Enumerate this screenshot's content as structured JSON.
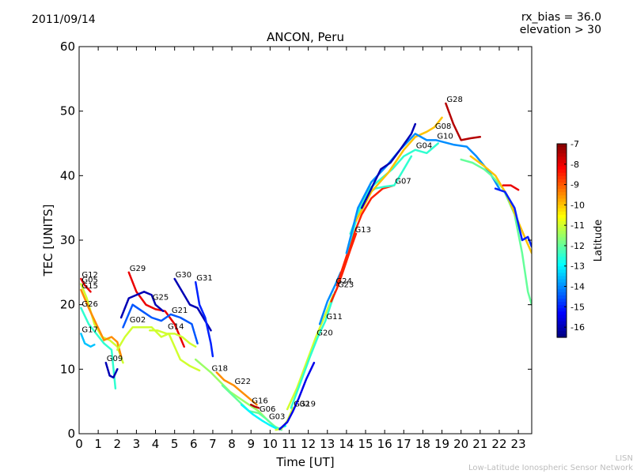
{
  "header": {
    "date": "2011/09/14",
    "rx_bias": "rx_bias = 36.0",
    "elevation": "elevation > 30"
  },
  "footer": {
    "line1": "LISN",
    "line2": "Low-Latitude Ionospheric Sensor Network"
  },
  "chart_data": {
    "type": "line",
    "title": "ANCON, Peru",
    "xlabel": "Time [UT]",
    "ylabel": "TEC [UNITS]",
    "xlim": [
      0,
      23.7
    ],
    "ylim": [
      0,
      60
    ],
    "xticks": [
      "0",
      "1",
      "2",
      "3",
      "4",
      "5",
      "6",
      "7",
      "8",
      "9",
      "10",
      "11",
      "12",
      "13",
      "14",
      "15",
      "16",
      "17",
      "18",
      "19",
      "20",
      "21",
      "22",
      "23"
    ],
    "yticks": [
      "0",
      "10",
      "20",
      "30",
      "40",
      "50",
      "60"
    ],
    "colorbar": {
      "label": "Latitude",
      "min": -16.5,
      "max": -7,
      "ticks": [
        "-7",
        "-8",
        "-9",
        "-10",
        "-11",
        "-12",
        "-13",
        "-14",
        "-15",
        "-16"
      ]
    },
    "series": [
      {
        "name": "G12",
        "lat": -8.0,
        "label_at": [
          0.1,
          24
        ],
        "points": [
          [
            0.1,
            24
          ],
          [
            0.3,
            23
          ],
          [
            0.6,
            22
          ]
        ]
      },
      {
        "name": "G05",
        "lat": -11.0,
        "label_at": [
          0.1,
          23.2
        ],
        "points": [
          [
            0.1,
            23.2
          ],
          [
            0.4,
            21
          ],
          [
            0.8,
            17
          ],
          [
            1.2,
            15
          ],
          [
            1.6,
            14.5
          ],
          [
            2.0,
            13.5
          ],
          [
            2.3,
            11
          ]
        ]
      },
      {
        "name": "G15",
        "lat": -9.5,
        "label_at": [
          0.1,
          22.3
        ],
        "points": [
          [
            0.1,
            22.3
          ],
          [
            0.5,
            19.5
          ],
          [
            0.9,
            17
          ],
          [
            1.3,
            14.5
          ],
          [
            1.7,
            15
          ],
          [
            2.0,
            14.2
          ],
          [
            2.2,
            12
          ]
        ]
      },
      {
        "name": "G26",
        "lat": -12.5,
        "label_at": [
          0.1,
          19.5
        ],
        "points": [
          [
            0.1,
            19.5
          ],
          [
            0.5,
            17
          ],
          [
            0.9,
            15.5
          ],
          [
            1.3,
            14
          ],
          [
            1.7,
            13
          ],
          [
            1.9,
            7
          ]
        ]
      },
      {
        "name": "G17",
        "lat": -13.5,
        "label_at": [
          0.1,
          15.5
        ],
        "points": [
          [
            0.1,
            15.5
          ],
          [
            0.3,
            14
          ],
          [
            0.6,
            13.5
          ],
          [
            0.8,
            13.8
          ]
        ]
      },
      {
        "name": "G09",
        "lat": -16.0,
        "label_at": [
          1.4,
          11
        ],
        "points": [
          [
            1.4,
            11
          ],
          [
            1.6,
            9
          ],
          [
            1.8,
            8.7
          ],
          [
            2.0,
            10
          ]
        ]
      },
      {
        "name": "G29",
        "lat": -8.0,
        "label_at": [
          2.6,
          25
        ],
        "points": [
          [
            2.6,
            25
          ],
          [
            3.0,
            22
          ],
          [
            3.5,
            20
          ],
          [
            4.0,
            19.3
          ],
          [
            4.5,
            19
          ],
          [
            5.0,
            17
          ],
          [
            5.5,
            13.5
          ]
        ]
      },
      {
        "name": "G02",
        "lat": -11.0,
        "label_at": [
          2.6,
          17
        ],
        "points": [
          [
            2.0,
            13
          ],
          [
            2.4,
            15
          ],
          [
            2.8,
            16.5
          ],
          [
            3.3,
            16.5
          ],
          [
            3.8,
            16.5
          ],
          [
            4.3,
            15
          ],
          [
            4.7,
            15.5
          ],
          [
            5.3,
            11.5
          ],
          [
            5.8,
            10.5
          ],
          [
            6.3,
            9.8
          ]
        ]
      },
      {
        "name": "G25",
        "lat": -16.0,
        "label_at": [
          3.8,
          20.5
        ],
        "points": [
          [
            2.2,
            18
          ],
          [
            2.6,
            21
          ],
          [
            3.0,
            21.5
          ],
          [
            3.4,
            22
          ],
          [
            3.8,
            21.5
          ],
          [
            4.0,
            20
          ],
          [
            4.4,
            19
          ]
        ]
      },
      {
        "name": "G30",
        "lat": -16.0,
        "label_at": [
          5.0,
          24
        ],
        "points": [
          [
            5.0,
            24
          ],
          [
            5.4,
            22
          ],
          [
            5.8,
            20
          ],
          [
            6.2,
            19.5
          ],
          [
            6.6,
            17.5
          ],
          [
            6.9,
            16
          ]
        ]
      },
      {
        "name": "G31",
        "lat": -15.0,
        "label_at": [
          6.1,
          23.5
        ],
        "points": [
          [
            6.1,
            23.5
          ],
          [
            6.3,
            20
          ],
          [
            6.6,
            18
          ],
          [
            6.9,
            14
          ],
          [
            7.0,
            12
          ]
        ]
      },
      {
        "name": "G21",
        "lat": -14.5,
        "label_at": [
          4.8,
          18.5
        ],
        "points": [
          [
            2.3,
            16.5
          ],
          [
            2.8,
            20
          ],
          [
            3.3,
            19
          ],
          [
            3.8,
            18
          ],
          [
            4.3,
            17.5
          ],
          [
            4.8,
            18.5
          ],
          [
            5.3,
            18
          ],
          [
            5.9,
            17
          ],
          [
            6.2,
            14
          ]
        ]
      },
      {
        "name": "G14",
        "lat": -11.0,
        "label_at": [
          4.6,
          16
        ],
        "points": [
          [
            3.7,
            16
          ],
          [
            4.1,
            16
          ],
          [
            4.6,
            15.5
          ],
          [
            5.0,
            15.5
          ],
          [
            5.4,
            15
          ],
          [
            5.8,
            14
          ],
          [
            6.1,
            13.5
          ]
        ]
      },
      {
        "name": "G18",
        "lat": -11.5,
        "label_at": [
          6.9,
          9.5
        ],
        "points": [
          [
            6.1,
            11.5
          ],
          [
            6.5,
            10.5
          ],
          [
            6.9,
            9.5
          ],
          [
            7.4,
            8
          ],
          [
            7.9,
            6.5
          ],
          [
            8.4,
            5.5
          ],
          [
            8.9,
            4.5
          ],
          [
            9.4,
            3.5
          ],
          [
            9.9,
            2
          ],
          [
            10.3,
            1
          ]
        ]
      },
      {
        "name": "G22",
        "lat": -9.5,
        "label_at": [
          8.1,
          7.5
        ],
        "points": [
          [
            7.2,
            9.5
          ],
          [
            7.6,
            8.3
          ],
          [
            8.1,
            7.5
          ],
          [
            8.5,
            6.5
          ],
          [
            8.9,
            5.5
          ],
          [
            9.3,
            4.5
          ]
        ]
      },
      {
        "name": "G16",
        "lat": -7.5,
        "label_at": [
          9.0,
          4.5
        ],
        "points": [
          [
            9.0,
            4.5
          ],
          [
            9.2,
            4.2
          ],
          [
            9.4,
            4.0
          ]
        ]
      },
      {
        "name": "G06",
        "lat": -12.0,
        "label_at": [
          9.4,
          3.2
        ],
        "points": [
          [
            7.5,
            7.5
          ],
          [
            8.2,
            5.5
          ],
          [
            8.9,
            3.5
          ],
          [
            9.4,
            3.2
          ],
          [
            9.8,
            2.3
          ],
          [
            10.2,
            1.2
          ],
          [
            10.6,
            0.6
          ]
        ]
      },
      {
        "name": "G03",
        "lat": -13.0,
        "label_at": [
          9.9,
          2
        ],
        "points": [
          [
            8.5,
            4.5
          ],
          [
            9.1,
            3
          ],
          [
            9.6,
            2
          ],
          [
            10.0,
            1.3
          ],
          [
            10.4,
            0.7
          ],
          [
            10.8,
            1.2
          ]
        ]
      },
      {
        "name": "G32",
        "lat": -11.0,
        "label_at": [
          11.2,
          4
        ],
        "points": [
          [
            10.3,
            0.6
          ],
          [
            10.6,
            0.8
          ],
          [
            10.9,
            2
          ],
          [
            11.2,
            4
          ]
        ]
      },
      {
        "name": "G19",
        "lat": -15.5,
        "label_at": [
          11.5,
          4
        ],
        "points": [
          [
            10.5,
            0.7
          ],
          [
            10.9,
            1.8
          ],
          [
            11.2,
            3.5
          ],
          [
            11.5,
            5.5
          ],
          [
            11.9,
            8.5
          ],
          [
            12.3,
            11
          ]
        ]
      },
      {
        "name": "G20",
        "lat": -11.0,
        "label_at": [
          12.4,
          15
        ],
        "points": [
          [
            10.9,
            3.8
          ],
          [
            11.4,
            7
          ],
          [
            11.9,
            11
          ],
          [
            12.4,
            15
          ],
          [
            12.9,
            18.5
          ],
          [
            13.3,
            21.5
          ]
        ]
      },
      {
        "name": "G11",
        "lat": -12.5,
        "label_at": [
          12.9,
          17.5
        ],
        "points": [
          [
            11.1,
            4
          ],
          [
            11.6,
            8
          ],
          [
            12.1,
            12
          ],
          [
            12.5,
            15
          ],
          [
            12.9,
            17.5
          ],
          [
            13.4,
            22
          ]
        ]
      },
      {
        "name": "G24",
        "lat": -14.0,
        "label_at": [
          13.4,
          23
        ],
        "points": [
          [
            12.6,
            17
          ],
          [
            13.0,
            20.5
          ],
          [
            13.4,
            23
          ],
          [
            13.7,
            25
          ]
        ]
      },
      {
        "name": "G23",
        "lat": -8.5,
        "label_at": [
          13.5,
          22.5
        ],
        "points": [
          [
            13.2,
            20.5
          ],
          [
            13.5,
            22.5
          ],
          [
            13.8,
            25
          ],
          [
            14.2,
            28.5
          ],
          [
            14.5,
            31
          ]
        ]
      },
      {
        "name": "G13",
        "lat": -8.5,
        "label_at": [
          14.4,
          31
        ],
        "points": [
          [
            13.5,
            23
          ],
          [
            14.0,
            27.5
          ],
          [
            14.4,
            31
          ],
          [
            14.8,
            34
          ],
          [
            15.3,
            36.5
          ],
          [
            15.9,
            38
          ],
          [
            16.5,
            38.5
          ]
        ]
      },
      {
        "name": "G07",
        "lat": -12.5,
        "label_at": [
          16.5,
          38.5
        ],
        "points": [
          [
            14.0,
            28
          ],
          [
            14.5,
            33
          ],
          [
            15.0,
            37
          ],
          [
            15.5,
            38
          ],
          [
            16.0,
            38.3
          ],
          [
            16.5,
            38.5
          ],
          [
            17.0,
            41
          ],
          [
            17.4,
            43
          ]
        ]
      },
      {
        "name": "G04",
        "lat": -12.5,
        "label_at": [
          17.6,
          44
        ],
        "points": [
          [
            14.2,
            31
          ],
          [
            14.7,
            35
          ],
          [
            15.2,
            38
          ],
          [
            15.8,
            39.5
          ],
          [
            16.4,
            41
          ],
          [
            17.0,
            43
          ],
          [
            17.6,
            44
          ],
          [
            18.2,
            43.5
          ],
          [
            18.8,
            45
          ]
        ]
      },
      {
        "name": "G08",
        "lat": -10.0,
        "label_at": [
          18.6,
          47
        ],
        "points": [
          [
            14.5,
            33
          ],
          [
            15.3,
            37.5
          ],
          [
            16.2,
            40.5
          ],
          [
            17.0,
            44
          ],
          [
            17.6,
            46
          ],
          [
            18.2,
            46.8
          ],
          [
            18.6,
            47.5
          ],
          [
            19.0,
            49
          ]
        ]
      },
      {
        "name": "G10",
        "lat": -14.0,
        "label_at": [
          18.7,
          45.5
        ],
        "points": [
          [
            14.0,
            28
          ],
          [
            14.6,
            35
          ],
          [
            15.3,
            39
          ],
          [
            16.1,
            41.5
          ],
          [
            16.8,
            44
          ],
          [
            17.6,
            46.5
          ],
          [
            18.2,
            45.5
          ],
          [
            18.7,
            45.5
          ],
          [
            19.6,
            44.8
          ],
          [
            20.3,
            44.5
          ],
          [
            20.8,
            43
          ],
          [
            21.5,
            40.5
          ],
          [
            22.0,
            38
          ]
        ]
      },
      {
        "name": "",
        "lat": -16.0,
        "label_at": null,
        "points": [
          [
            14.8,
            35
          ],
          [
            15.3,
            38
          ],
          [
            15.8,
            41
          ],
          [
            16.3,
            42
          ],
          [
            16.8,
            44
          ],
          [
            17.4,
            46.5
          ],
          [
            17.6,
            48
          ]
        ]
      },
      {
        "name": "G28",
        "lat": -7.5,
        "label_at": [
          19.2,
          51.2
        ],
        "points": [
          [
            19.2,
            51.2
          ],
          [
            19.6,
            48
          ],
          [
            20.0,
            45.5
          ],
          [
            20.5,
            45.8
          ],
          [
            21.0,
            46
          ]
        ]
      },
      {
        "name": "",
        "lat": -12.0,
        "label_at": null,
        "points": [
          [
            20.0,
            42.5
          ],
          [
            20.6,
            42
          ],
          [
            21.2,
            41
          ],
          [
            21.6,
            40
          ],
          [
            22.2,
            38
          ],
          [
            22.8,
            34
          ],
          [
            23.2,
            28
          ],
          [
            23.5,
            22
          ],
          [
            23.7,
            20
          ]
        ]
      },
      {
        "name": "",
        "lat": -10.0,
        "label_at": null,
        "points": [
          [
            20.5,
            43
          ],
          [
            21.2,
            41.5
          ],
          [
            21.8,
            40
          ],
          [
            22.4,
            37
          ],
          [
            22.9,
            33.5
          ],
          [
            23.4,
            30
          ],
          [
            23.7,
            28
          ]
        ]
      },
      {
        "name": "",
        "lat": -15.0,
        "label_at": null,
        "points": [
          [
            21.8,
            38
          ],
          [
            22.3,
            37.5
          ],
          [
            22.8,
            35
          ],
          [
            23.2,
            30
          ],
          [
            23.5,
            30.5
          ],
          [
            23.7,
            29
          ]
        ]
      },
      {
        "name": "",
        "lat": -8.0,
        "label_at": null,
        "points": [
          [
            22.2,
            38.5
          ],
          [
            22.6,
            38.5
          ],
          [
            23.0,
            37.8
          ]
        ]
      }
    ]
  }
}
